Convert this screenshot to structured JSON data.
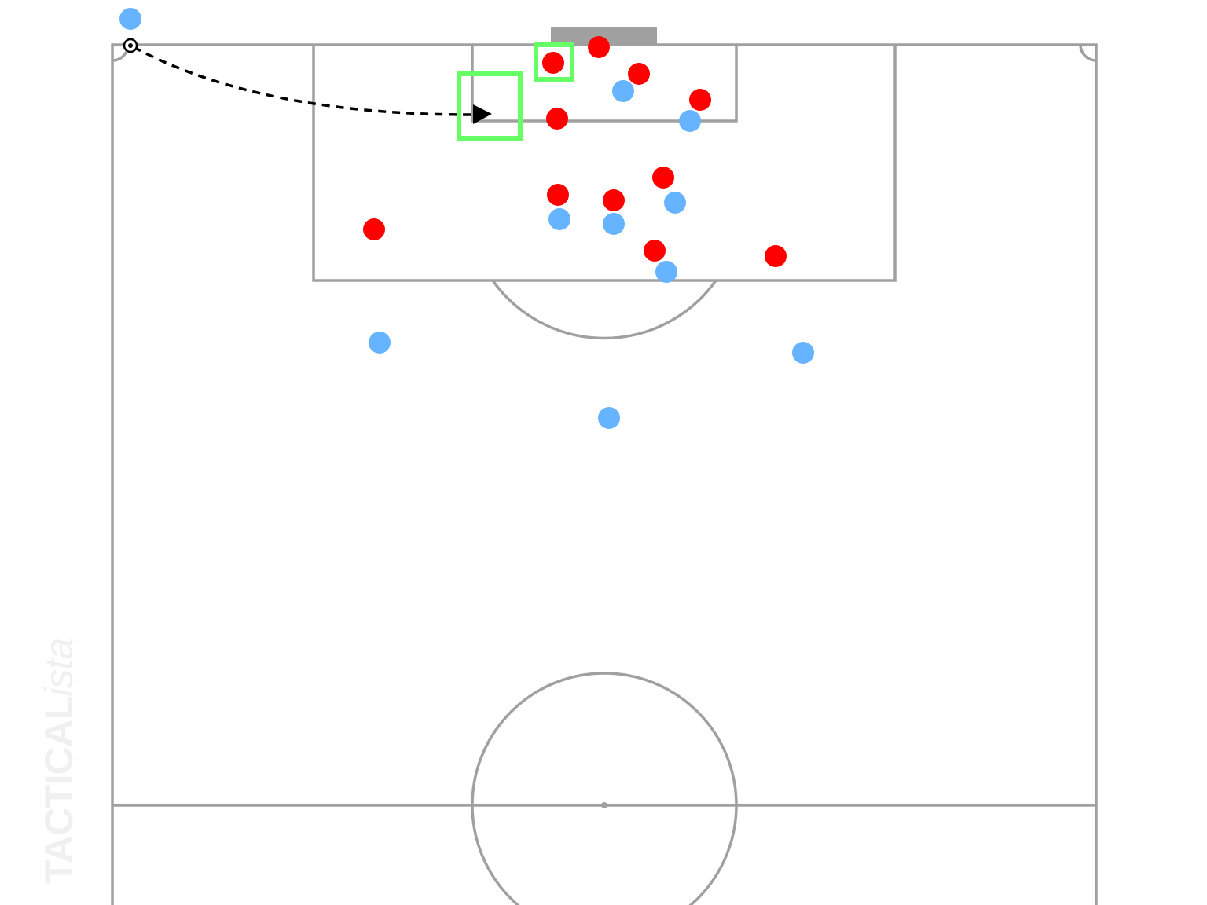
{
  "diagram": {
    "type": "football set-piece (corner kick)",
    "teams": {
      "attacking": {
        "color": "#ff0000",
        "players": 11
      },
      "defending": {
        "color": "#66b3ff",
        "players": 10
      }
    },
    "highlight_color": "#66ff66",
    "pitch_line_color": "#a0a0a0",
    "goal_color": "#a0a0a0",
    "ball_icon": "soccer-ball-icon",
    "pass": {
      "style": "dashed",
      "arrow": "triangle"
    }
  },
  "watermark": {
    "brand": "TACTICAL",
    "suffix": "ista"
  }
}
